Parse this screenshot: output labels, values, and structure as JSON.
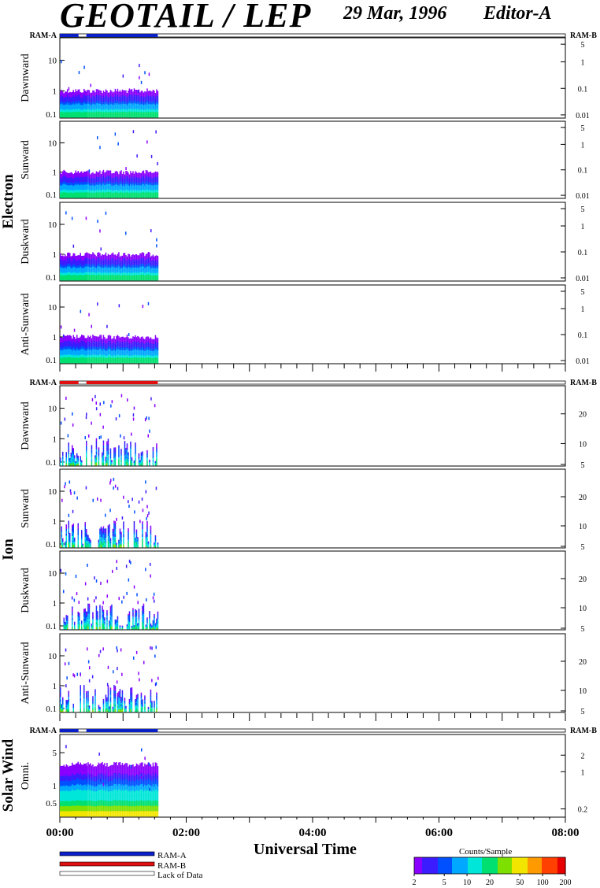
{
  "header": {
    "title": "GEOTAIL / LEP",
    "date": "29 Mar, 1996",
    "editor": "Editor-A"
  },
  "colors": {
    "ram_a": "#0a1fc8",
    "ram_b": "#e01010",
    "colormap": [
      "#8a00ff",
      "#3a1cff",
      "#0050ff",
      "#00a8ff",
      "#00e6d8",
      "#00e070",
      "#7ee000",
      "#f2e600",
      "#ff9a00",
      "#ff4000",
      "#e80000"
    ]
  },
  "chart_data": {
    "type": "heatmap",
    "xlabel": "Universal Time",
    "x_ticks": [
      "00:00",
      "02:00",
      "04:00",
      "06:00",
      "08:00"
    ],
    "x_range_hours": [
      0,
      8
    ],
    "data_coverage_hours": [
      [
        0.0,
        0.42
      ],
      [
        0.42,
        1.55
      ]
    ],
    "groups": [
      {
        "name": "Electron",
        "ram_left": "RAM-A",
        "ram_right": "RAM-B",
        "panels": [
          {
            "label": "Dawnward",
            "left_ticks": [
              "0.1",
              "1",
              "10"
            ],
            "right_ticks": [
              "5",
              "1",
              "0.1",
              "0.01"
            ]
          },
          {
            "label": "Sunward",
            "left_ticks": [
              "0.1",
              "1",
              "10"
            ],
            "right_ticks": [
              "5",
              "1",
              "0.1",
              "0.01"
            ]
          },
          {
            "label": "Duskward",
            "left_ticks": [
              "0.1",
              "1",
              "10"
            ],
            "right_ticks": [
              "5",
              "1",
              "0.1",
              "0.01"
            ]
          },
          {
            "label": "Anti-Sunward",
            "left_ticks": [
              "0.1",
              "1",
              "10"
            ],
            "right_ticks": [
              "5",
              "1",
              "0.1",
              "0.01"
            ]
          }
        ]
      },
      {
        "name": "Ion",
        "ram_left": "RAM-A",
        "ram_right": "RAM-B",
        "panels": [
          {
            "label": "Dawnward",
            "left_ticks": [
              "0.1",
              "1",
              "10"
            ],
            "right_ticks": [
              "20",
              "10",
              "5"
            ]
          },
          {
            "label": "Sunward",
            "left_ticks": [
              "0.1",
              "1",
              "10"
            ],
            "right_ticks": [
              "20",
              "10",
              "5"
            ]
          },
          {
            "label": "Duskward",
            "left_ticks": [
              "0.1",
              "1",
              "10"
            ],
            "right_ticks": [
              "20",
              "10",
              "5"
            ]
          },
          {
            "label": "Anti-Sunward",
            "left_ticks": [
              "0.1",
              "1",
              "10"
            ],
            "right_ticks": [
              "20",
              "10",
              "5"
            ]
          }
        ]
      },
      {
        "name": "Solar Wind",
        "ram_left": "RAM-A",
        "ram_right": "RAM-B",
        "panels": [
          {
            "label": "Omni.",
            "left_ticks": [
              "0.5",
              "1",
              "5"
            ],
            "right_ticks": [
              "2",
              "1",
              "0.2"
            ]
          }
        ]
      }
    ],
    "legend": {
      "items": [
        {
          "label": "RAM-A",
          "color": "#0a1fc8"
        },
        {
          "label": "RAM-B",
          "color": "#e01010"
        },
        {
          "label": "Lack of Data",
          "color": "#ffffff"
        }
      ]
    },
    "colorbar": {
      "title": "Counts/Sample",
      "ticks": [
        "2",
        "5",
        "10",
        "20",
        "50",
        "100",
        "200"
      ],
      "range": [
        2,
        200
      ],
      "scale": "log"
    }
  }
}
